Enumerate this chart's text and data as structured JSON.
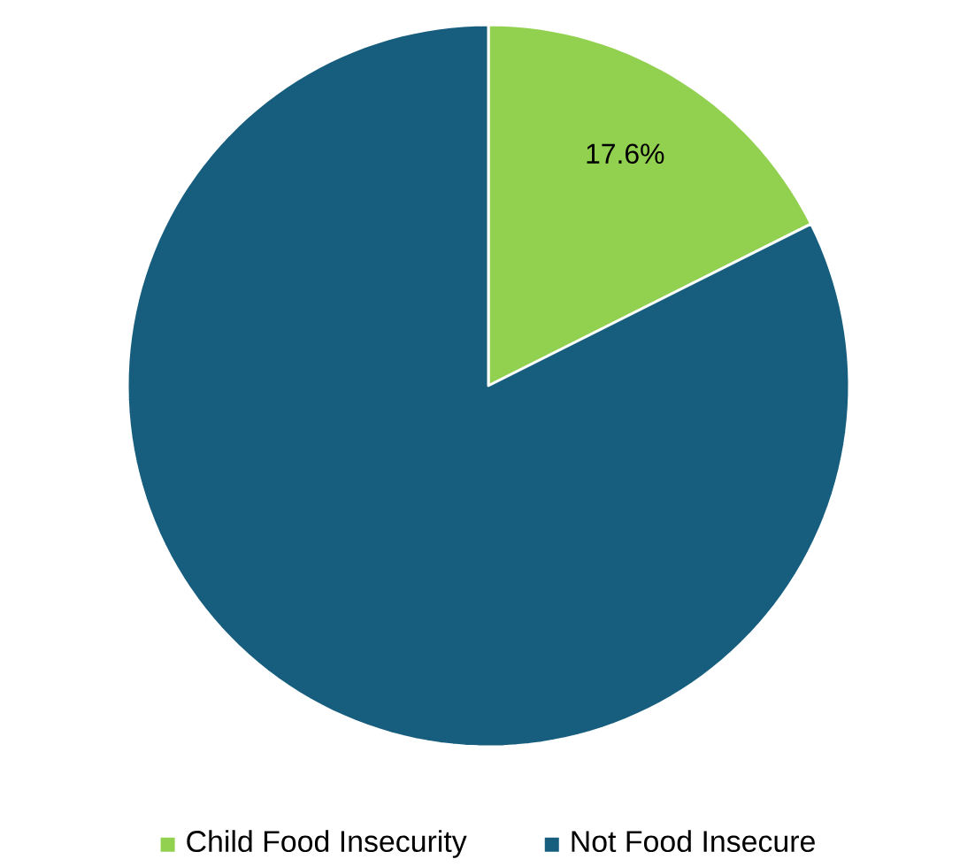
{
  "chart_data": {
    "type": "pie",
    "categories": [
      "Child Food Insecurity",
      "Not Food Insecure"
    ],
    "values": [
      17.6,
      82.4
    ],
    "colors": [
      "#92d050",
      "#175e7e"
    ],
    "value_labels": [
      "17.6%",
      null
    ],
    "legend": "bottom"
  }
}
